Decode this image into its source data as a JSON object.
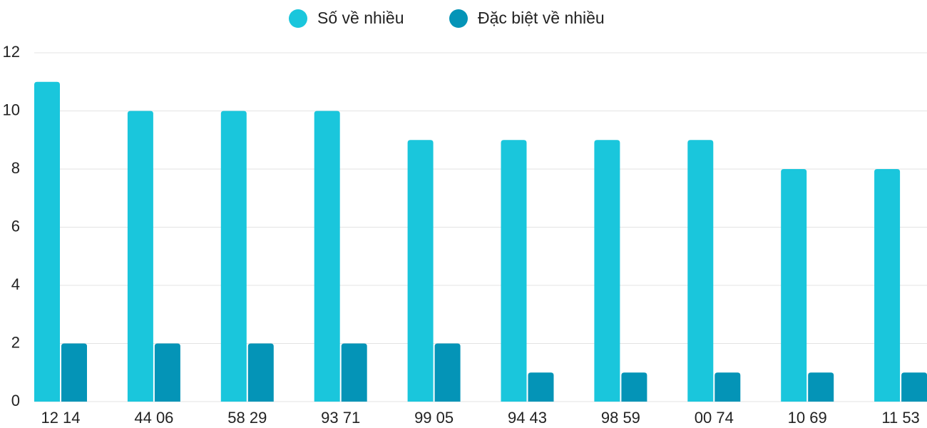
{
  "chart_data": {
    "type": "bar",
    "categories": [
      "12 14",
      "44 06",
      "58 29",
      "93 71",
      "99 05",
      "94 43",
      "98 59",
      "00 74",
      "10 69",
      "11 53"
    ],
    "series": [
      {
        "name": "Số về nhiều",
        "color": "#1ac6dc",
        "values": [
          11,
          10,
          10,
          10,
          9,
          9,
          9,
          9,
          8,
          8
        ]
      },
      {
        "name": "Đặc biệt về nhiều",
        "color": "#0494b7",
        "values": [
          2,
          2,
          2,
          2,
          2,
          1,
          1,
          1,
          1,
          1
        ]
      }
    ],
    "ylim": [
      0,
      12
    ],
    "yticks": [
      0,
      2,
      4,
      6,
      8,
      10,
      12
    ],
    "grid": true,
    "legend": "top"
  }
}
